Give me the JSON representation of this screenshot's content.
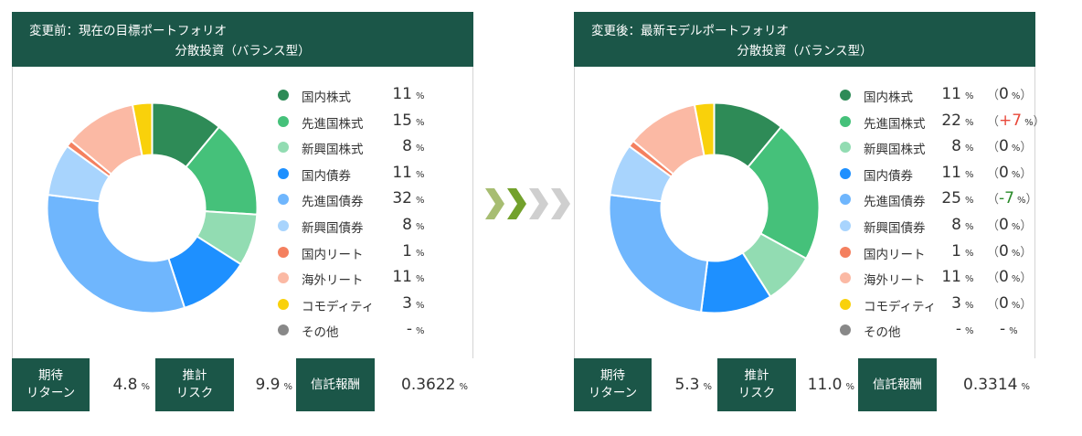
{
  "panels": [
    {
      "title_line1": "変更前：現在の目標ポートフォリオ",
      "title_line2": "分散投資（バランス型）",
      "metrics": {
        "return_label_1": "期待",
        "return_label_2": "リターン",
        "return_value": "4.8",
        "risk_label_1": "推計",
        "risk_label_2": "リスク",
        "risk_value": "9.9",
        "fee_label": "信託報酬",
        "fee_value": "0.3622",
        "unit": "%"
      }
    },
    {
      "title_line1": "変更後：最新モデルポートフォリオ",
      "title_line2": "分散投資（バランス型）",
      "metrics": {
        "return_label_1": "期待",
        "return_label_2": "リターン",
        "return_value": "5.3",
        "risk_label_1": "推計",
        "risk_label_2": "リスク",
        "risk_value": "11.0",
        "fee_label": "信託報酬",
        "fee_value": "0.3314",
        "unit": "%"
      }
    }
  ],
  "chart_data": [
    {
      "type": "pie",
      "donut": true,
      "legend_placement": "right",
      "categories": [
        "国内株式",
        "先進国株式",
        "新興国株式",
        "国内債券",
        "先進国債券",
        "新興国債券",
        "国内リート",
        "海外リート",
        "コモディティ",
        "その他"
      ],
      "values": [
        11,
        15,
        8,
        11,
        32,
        8,
        1,
        11,
        3,
        null
      ],
      "value_labels": [
        "11",
        "15",
        "8",
        "11",
        "32",
        "8",
        "1",
        "11",
        "3",
        "-"
      ],
      "unit": "%",
      "colors": [
        "#2e8b57",
        "#45c17a",
        "#92dcb2",
        "#1e90ff",
        "#6fb6fd",
        "#a8d4fd",
        "#f4805f",
        "#fbb9a4",
        "#f9d10b",
        "#888888"
      ]
    },
    {
      "type": "pie",
      "donut": true,
      "legend_placement": "right",
      "categories": [
        "国内株式",
        "先進国株式",
        "新興国株式",
        "国内債券",
        "先進国債券",
        "新興国債券",
        "国内リート",
        "海外リート",
        "コモディティ",
        "その他"
      ],
      "values": [
        11,
        22,
        8,
        11,
        25,
        8,
        1,
        11,
        3,
        null
      ],
      "value_labels": [
        "11",
        "22",
        "8",
        "11",
        "25",
        "8",
        "1",
        "11",
        "3",
        "-"
      ],
      "changes": [
        "0",
        "+7",
        "0",
        "0",
        "-7",
        "0",
        "0",
        "0",
        "0",
        "-"
      ],
      "unit": "%",
      "colors": [
        "#2e8b57",
        "#45c17a",
        "#92dcb2",
        "#1e90ff",
        "#6fb6fd",
        "#a8d4fd",
        "#f4805f",
        "#fbb9a4",
        "#f9d10b",
        "#888888"
      ]
    }
  ]
}
